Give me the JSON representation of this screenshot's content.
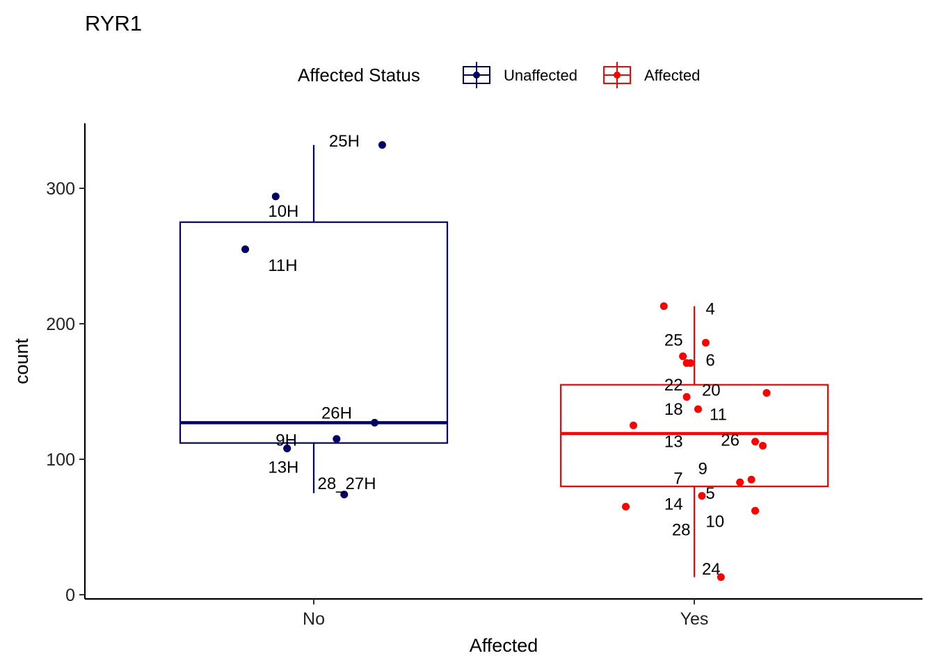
{
  "chart_data": {
    "type": "boxplot",
    "title": "RYR1",
    "xlabel": "Affected",
    "ylabel": "count",
    "ylim": [
      0,
      348
    ],
    "y_ticks": [
      0,
      100,
      200,
      300
    ],
    "grid": false,
    "legend": {
      "title": "Affected Status",
      "position": "top",
      "entries": [
        {
          "name": "Unaffected",
          "color": "#000066"
        },
        {
          "name": "Affected",
          "color": "#ff0000"
        }
      ]
    },
    "categories": [
      "No",
      "Yes"
    ],
    "series": [
      {
        "name": "Unaffected",
        "category": "No",
        "color": "#000066",
        "box": {
          "q1": 112,
          "median": 127,
          "q3": 275,
          "whisker_low": 75,
          "whisker_high": 332
        },
        "points": [
          {
            "label": "25H",
            "x": 0.18,
            "y": 332,
            "lx": 0.04,
            "ly": 335,
            "anchor": "start"
          },
          {
            "label": "10H",
            "x": -0.1,
            "y": 294,
            "lx": -0.12,
            "ly": 283,
            "anchor": "start"
          },
          {
            "label": "11H",
            "x": -0.18,
            "y": 255,
            "lx": -0.12,
            "ly": 243,
            "anchor": "start"
          },
          {
            "label": "26H",
            "x": 0.16,
            "y": 127,
            "lx": 0.02,
            "ly": 134,
            "anchor": "start"
          },
          {
            "label": "9H",
            "x": -0.07,
            "y": 108,
            "lx": -0.1,
            "ly": 114,
            "anchor": "start"
          },
          {
            "label": "13H",
            "x": -0.07,
            "y": 108,
            "lx": -0.12,
            "ly": 94,
            "anchor": "start"
          },
          {
            "label": "",
            "x": 0.06,
            "y": 115,
            "lx": 0,
            "ly": 0,
            "anchor": "start"
          },
          {
            "label": "28_27H",
            "x": 0.08,
            "y": 74,
            "lx": 0.01,
            "ly": 82,
            "anchor": "start"
          }
        ]
      },
      {
        "name": "Affected",
        "category": "Yes",
        "color": "#ff0000",
        "box": {
          "q1": 80,
          "median": 119,
          "q3": 155,
          "whisker_low": 13,
          "whisker_high": 213
        },
        "points": [
          {
            "label": "4",
            "x": -0.08,
            "y": 213,
            "lx": 0.03,
            "ly": 211,
            "anchor": "start"
          },
          {
            "label": "25",
            "x": 0.03,
            "y": 186,
            "lx": -0.03,
            "ly": 188,
            "anchor": "end"
          },
          {
            "label": "6",
            "x": -0.03,
            "y": 176,
            "lx": 0.03,
            "ly": 173,
            "anchor": "start"
          },
          {
            "label": "",
            "x": -0.01,
            "y": 171,
            "lx": 0,
            "ly": 0,
            "anchor": "start"
          },
          {
            "label": "22",
            "x": -0.02,
            "y": 171,
            "lx": -0.03,
            "ly": 155,
            "anchor": "end"
          },
          {
            "label": "20",
            "x": 0.19,
            "y": 149,
            "lx": 0.02,
            "ly": 151,
            "anchor": "start"
          },
          {
            "label": "18",
            "x": -0.02,
            "y": 146,
            "lx": -0.03,
            "ly": 137,
            "anchor": "end"
          },
          {
            "label": "11",
            "x": 0.01,
            "y": 137,
            "lx": 0.04,
            "ly": 133,
            "anchor": "start"
          },
          {
            "label": "",
            "x": -0.16,
            "y": 125,
            "lx": 0,
            "ly": 0,
            "anchor": "start"
          },
          {
            "label": "13",
            "x": 0.16,
            "y": 113,
            "lx": -0.03,
            "ly": 113,
            "anchor": "end"
          },
          {
            "label": "26",
            "x": 0.18,
            "y": 110,
            "lx": 0.07,
            "ly": 114,
            "anchor": "start"
          },
          {
            "label": "9",
            "x": 0.12,
            "y": 83,
            "lx": 0.01,
            "ly": 93,
            "anchor": "start"
          },
          {
            "label": "7",
            "x": 0.15,
            "y": 85,
            "lx": -0.03,
            "ly": 86,
            "anchor": "end"
          },
          {
            "label": "5",
            "x": 0.02,
            "y": 73,
            "lx": 0.03,
            "ly": 75,
            "anchor": "start"
          },
          {
            "label": "14",
            "x": -0.18,
            "y": 65,
            "lx": -0.03,
            "ly": 67,
            "anchor": "end"
          },
          {
            "label": "10",
            "x": 0.16,
            "y": 62,
            "lx": 0.03,
            "ly": 54,
            "anchor": "start"
          },
          {
            "label": "28",
            "x": 0.16,
            "y": 62,
            "lx": -0.01,
            "ly": 48,
            "anchor": "end"
          },
          {
            "label": "24",
            "x": 0.07,
            "y": 13,
            "lx": 0.02,
            "ly": 19,
            "anchor": "start"
          }
        ]
      }
    ]
  }
}
